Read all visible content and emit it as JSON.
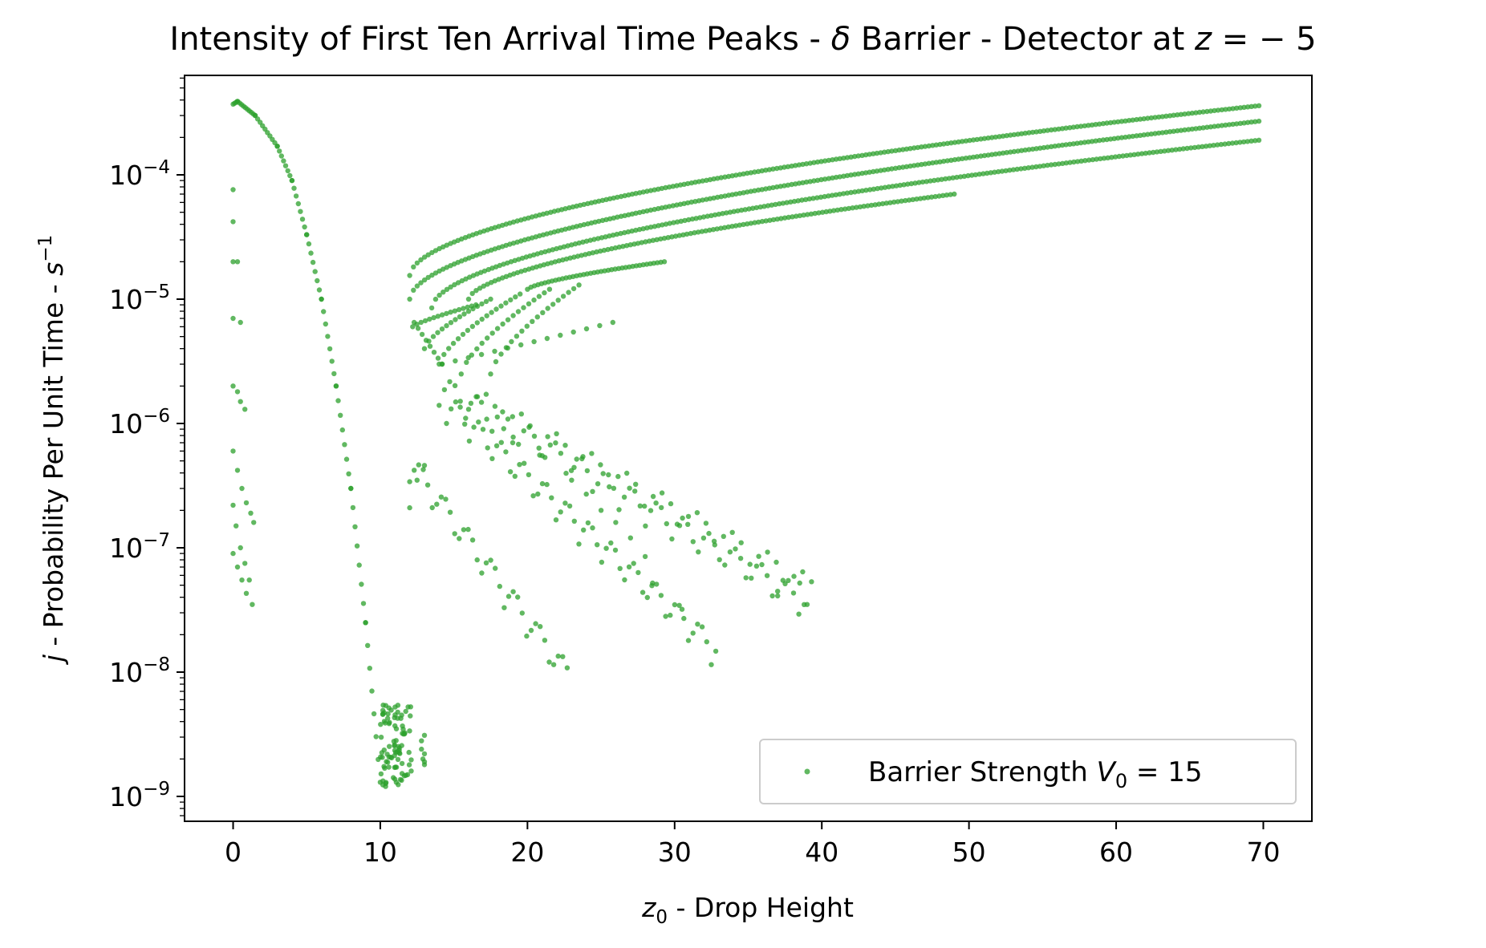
{
  "chart_data": {
    "type": "scatter",
    "title_parts": {
      "prefix": "Intensity of First Ten Arrival Time Peaks - ",
      "symbol": "δ",
      "middle": " Barrier - Detector at ",
      "var": "z",
      "suffix": " = − 5"
    },
    "xlabel_parts": {
      "var": "z",
      "sub": "0",
      "text": " - Drop Height"
    },
    "ylabel_parts": {
      "var": "j",
      "text": " - Probability Per Unit Time - ",
      "unit": "s",
      "sup": "−1"
    },
    "xlim": [
      -3.3,
      73.3
    ],
    "ylim_log10": [
      -9.2,
      -3.2
    ],
    "y_scale": "log",
    "x_ticks": [
      0,
      10,
      20,
      30,
      40,
      50,
      60,
      70
    ],
    "y_ticks": [
      {
        "base": "10",
        "exp": "−9",
        "pow": -9
      },
      {
        "base": "10",
        "exp": "−8",
        "pow": -8
      },
      {
        "base": "10",
        "exp": "−7",
        "pow": -7
      },
      {
        "base": "10",
        "exp": "−6",
        "pow": -6
      },
      {
        "base": "10",
        "exp": "−5",
        "pow": -5
      },
      {
        "base": "10",
        "exp": "−4",
        "pow": -4
      }
    ],
    "grid": false,
    "legend": {
      "position": "lower-right",
      "text": "Barrier Strength ",
      "var": "V",
      "sub": "0",
      "suffix": " = 15"
    },
    "marker_color": "#2ca02c",
    "series": [
      {
        "name": "Barrier Strength V0 = 15",
        "groups": [
          {
            "kind": "line",
            "x0": 0.0,
            "x1": 0.3,
            "y0": 0.00037,
            "y1": 0.00039,
            "n": 4
          },
          {
            "kind": "line",
            "x0": 0.3,
            "x1": 1.5,
            "y0": 0.00039,
            "y1": 0.0003,
            "n": 10
          },
          {
            "kind": "line",
            "x0": 1.5,
            "x1": 3.0,
            "y0": 0.0003,
            "y1": 0.00017,
            "n": 10
          },
          {
            "kind": "line",
            "x0": 3.0,
            "x1": 4.0,
            "y0": 0.00017,
            "y1": 9e-05,
            "n": 8
          },
          {
            "kind": "line",
            "x0": 4.0,
            "x1": 5.0,
            "y0": 9e-05,
            "y1": 3.3e-05,
            "n": 8
          },
          {
            "kind": "line",
            "x0": 5.0,
            "x1": 6.0,
            "y0": 3.3e-05,
            "y1": 1e-05,
            "n": 8
          },
          {
            "kind": "line",
            "x0": 6.0,
            "x1": 7.0,
            "y0": 1e-05,
            "y1": 2e-06,
            "n": 8
          },
          {
            "kind": "line",
            "x0": 7.0,
            "x1": 8.0,
            "y0": 2e-06,
            "y1": 3e-07,
            "n": 8
          },
          {
            "kind": "line",
            "x0": 8.0,
            "x1": 9.0,
            "y0": 3e-07,
            "y1": 2.5e-08,
            "n": 8
          },
          {
            "kind": "line",
            "x0": 9.0,
            "x1": 10.0,
            "y0": 2.5e-08,
            "y1": 1.3e-09,
            "n": 8
          },
          {
            "kind": "points",
            "x": [
              0.0,
              0.0,
              0.0,
              0.0,
              0.3,
              0.5,
              0.0,
              0.3,
              0.5,
              0.8,
              0.0,
              0.3,
              0.6,
              0.9,
              1.2,
              1.4,
              0.0,
              0.2,
              0.5,
              0.8,
              1.1,
              0.0,
              0.3,
              0.6,
              0.9,
              1.3
            ],
            "y": [
              7.6e-05,
              4.2e-05,
              2e-05,
              7e-06,
              2e-05,
              6.5e-06,
              2e-06,
              1.8e-06,
              1.5e-06,
              1.3e-06,
              6e-07,
              4.2e-07,
              3e-07,
              2.3e-07,
              1.9e-07,
              1.6e-07,
              2.2e-07,
              1.5e-07,
              1e-07,
              7.5e-08,
              5.5e-08,
              9e-08,
              7e-08,
              5.5e-08,
              4.3e-08,
              3.5e-08
            ]
          },
          {
            "kind": "cluster",
            "x0": 10.0,
            "x1": 12.2,
            "ylo": 1.2e-09,
            "yhi": 5.5e-09,
            "n": 90
          },
          {
            "kind": "points",
            "x": [
              12.8,
              12.8,
              12.9,
              13.0,
              13.0,
              13.0,
              13.0
            ],
            "y": [
              2.8e-09,
              2.4e-09,
              2e-09,
              1.8e-09,
              3.1e-09,
              2.2e-09,
              1.9e-09
            ]
          },
          {
            "kind": "line",
            "x0": 12.0,
            "x1": 69.7,
            "y0": 1.55e-05,
            "y1": 0.00036,
            "n": 230,
            "bend": 0.55
          },
          {
            "kind": "line",
            "x0": 12.0,
            "x1": 69.7,
            "y0": 1e-05,
            "y1": 0.00027,
            "n": 230,
            "bend": 0.55
          },
          {
            "kind": "line",
            "x0": 13.5,
            "x1": 69.7,
            "y0": 8.5e-06,
            "y1": 0.00019,
            "n": 220,
            "bend": 0.55
          },
          {
            "kind": "line",
            "x0": 16.0,
            "x1": 49.0,
            "y0": 1e-05,
            "y1": 7e-05,
            "n": 130,
            "bend": 0.6
          },
          {
            "kind": "line",
            "x0": 20.0,
            "x1": 29.3,
            "y0": 1.2e-05,
            "y1": 2e-05,
            "n": 40,
            "bend": 0.7
          },
          {
            "kind": "line",
            "x0": 12.2,
            "x1": 16.5,
            "y0": 6e-06,
            "y1": 9e-06,
            "n": 16,
            "bend": 0.8
          },
          {
            "kind": "line",
            "x0": 13.0,
            "x1": 17.5,
            "y0": 4e-06,
            "y1": 1e-05,
            "n": 16,
            "bend": 0.7
          },
          {
            "kind": "line",
            "x0": 14.0,
            "x1": 19.5,
            "y0": 3e-06,
            "y1": 1.1e-05,
            "n": 18,
            "bend": 0.7
          },
          {
            "kind": "line",
            "x0": 15.5,
            "x1": 21.5,
            "y0": 2.5e-06,
            "y1": 1.2e-05,
            "n": 18,
            "bend": 0.7
          },
          {
            "kind": "line",
            "x0": 17.5,
            "x1": 23.5,
            "y0": 2.5e-06,
            "y1": 1.3e-05,
            "n": 18,
            "bend": 0.7
          },
          {
            "kind": "line",
            "x0": 12.3,
            "x1": 14.2,
            "y0": 6.5e-06,
            "y1": 3e-06,
            "n": 8
          },
          {
            "kind": "line",
            "x0": 14.2,
            "x1": 25.8,
            "y0": 3e-06,
            "y1": 6.5e-06,
            "n": 14
          },
          {
            "kind": "line",
            "x0": 14.0,
            "x1": 38.8,
            "y0": 1.4e-06,
            "y1": 2.6e-08,
            "n": 70,
            "wave": 0.25,
            "period": 1.75
          },
          {
            "kind": "line",
            "x0": 16.0,
            "x1": 39.3,
            "y0": 1.3e-06,
            "y1": 3.7e-08,
            "n": 40,
            "wave": 0.2,
            "period": 2.4
          },
          {
            "kind": "line",
            "x0": 14.5,
            "x1": 32.8,
            "y0": 1e-06,
            "y1": 1.05e-08,
            "n": 60,
            "wave": 0.25,
            "period": 1.5
          },
          {
            "kind": "line",
            "x0": 12.0,
            "x1": 22.7,
            "y0": 3.4e-07,
            "y1": 6.7e-09,
            "n": 36,
            "wave": 0.25,
            "period": 1.6
          },
          {
            "kind": "points",
            "x": [
              12.0,
              12.5,
              13.0,
              19.0,
              21.0,
              23.0,
              24.0,
              25.0,
              26.0,
              27.0,
              28.0,
              28.5,
              30.5,
              37.0,
              38.5,
              39.0
            ],
            "y": [
              2.1e-07,
              3.5e-07,
              4.6e-07,
              7e-07,
              5.5e-07,
              3.5e-07,
              2.7e-07,
              2e-07,
              1.6e-07,
              1.2e-07,
              8.5e-08,
              5.2e-08,
              3.2e-08,
              4.1e-08,
              5.2e-08,
              3.5e-08
            ]
          }
        ]
      }
    ]
  }
}
